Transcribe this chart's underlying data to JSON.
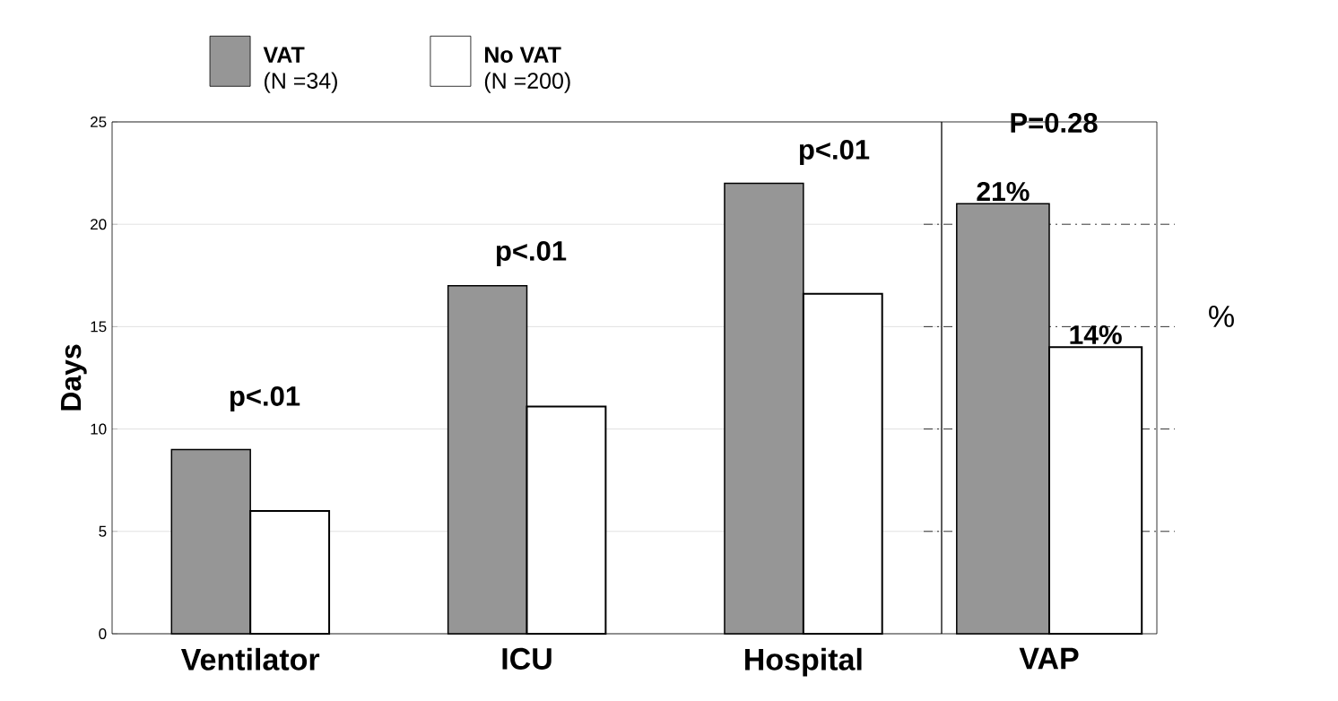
{
  "chart_data": [
    {
      "type": "bar",
      "ylabel": "Days",
      "categories": [
        "Ventilator",
        "ICU",
        "Hospital"
      ],
      "series": [
        {
          "name": "VAT",
          "color": "#969696",
          "values": [
            9,
            17,
            22
          ]
        },
        {
          "name": "No VAT",
          "color": "#ffffff",
          "values": [
            6,
            11.1,
            16.6
          ]
        }
      ],
      "ylim": [
        0,
        25
      ],
      "yticks": [
        0,
        5,
        10,
        15,
        20,
        25
      ],
      "grid": "y",
      "legend": "top",
      "annotations": [
        "(N =34)",
        "(N =200)",
        "p<.01",
        "p<.01",
        "p<.01"
      ]
    },
    {
      "type": "bar",
      "ylabel": "%",
      "categories": [
        "VAP"
      ],
      "series": [
        {
          "color": "#969696",
          "values": [
            21
          ],
          "value_labels": [
            "21%"
          ]
        },
        {
          "color": "#ffffff",
          "values": [
            14
          ],
          "value_labels": [
            "14%"
          ]
        }
      ],
      "ylim": [
        0,
        25
      ],
      "ref_lines": [
        {
          "axis": "y",
          "value": 5,
          "line_style": "dashed"
        },
        {
          "axis": "y",
          "value": 10,
          "line_style": "dashed"
        },
        {
          "axis": "y",
          "value": 15,
          "line_style": "dashed"
        },
        {
          "axis": "y",
          "value": 20,
          "line_style": "dashed"
        }
      ],
      "annotations": [
        "P=0.28"
      ]
    }
  ]
}
